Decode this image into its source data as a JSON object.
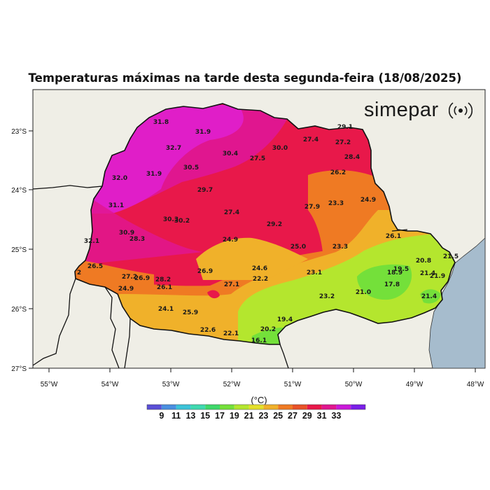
{
  "title": "Temperaturas máximas na tarde desta segunda-feira (18/08/2025)",
  "brand": {
    "name": "simepar",
    "logo_icon": "radio-wave-icon"
  },
  "map": {
    "region": "Paraná",
    "lon_ticks": [
      "55°W",
      "54°W",
      "53°W",
      "52°W",
      "51°W",
      "50°W",
      "49°W",
      "48°W"
    ],
    "lat_ticks": [
      "23°S",
      "24°S",
      "25°S",
      "26°S",
      "27°S"
    ]
  },
  "temperature_labels": [
    "31.8",
    "31.9",
    "32.7",
    "30.4",
    "30.0",
    "27.4",
    "29.1",
    "27.2",
    "28.4",
    "32.0",
    "31.9",
    "30.5",
    "27.5",
    "26.2",
    "29.7",
    "31.1",
    "27.4",
    "23.3",
    "24.9",
    "27.9",
    "30.3",
    "30.2",
    "29.2",
    "30.9",
    "28.3",
    "32.1",
    "24.9",
    "25.0",
    "23.3",
    "26.1",
    "26.5",
    "27.2",
    "26.9",
    "28.2",
    "26.9",
    "24.6",
    "22.2",
    "23.1",
    "20.8",
    "21.5",
    "19.5",
    "21.4",
    "21.9",
    "24.9",
    "26.1",
    "27.1",
    "18.9",
    "17.8",
    "21.0",
    "23.2",
    "21.4",
    "24.1",
    "25.9",
    "19.4",
    "22.6",
    "22.1",
    "20.2",
    "16.1",
    "2"
  ],
  "legend": {
    "unit": "(°C)",
    "tick_labels": [
      "9",
      "11",
      "13",
      "15",
      "17",
      "19",
      "21",
      "23",
      "25",
      "27",
      "29",
      "31",
      "33"
    ],
    "colors": [
      "#5a4fd6",
      "#4a8fe0",
      "#3cc3d8",
      "#3fd9b0",
      "#3ed86a",
      "#74e03a",
      "#b4e62e",
      "#e3df2a",
      "#f0b12a",
      "#ef7a23",
      "#e85228",
      "#e8184a",
      "#e0168f",
      "#c919d9",
      "#7a1fe8"
    ]
  }
}
